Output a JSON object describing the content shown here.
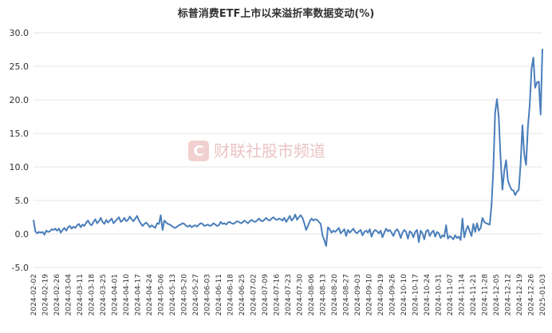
{
  "chart_data": {
    "type": "line",
    "title": "标普消费ETF上市以来溢折率数据变动(%)",
    "xlabel": "",
    "ylabel": "",
    "ylim": [
      -5,
      30
    ],
    "yticks": [
      "-5.0",
      "0.0",
      "5.0",
      "10.0",
      "15.0",
      "20.0",
      "25.0",
      "30.0"
    ],
    "grid": true,
    "legend": "none",
    "x_tick_labels": [
      "2024-02-02",
      "2024-02-19",
      "2024-02-26",
      "2024-03-04",
      "2024-03-11",
      "2024-03-18",
      "2024-03-25",
      "2024-04-01",
      "2024-04-10",
      "2024-04-17",
      "2024-04-24",
      "2024-05-06",
      "2024-05-13",
      "2024-05-20",
      "2024-05-27",
      "2024-06-03",
      "2024-06-11",
      "2024-06-18",
      "2024-06-25",
      "2024-07-02",
      "2024-07-09",
      "2024-07-16",
      "2024-07-23",
      "2024-07-30",
      "2024-08-06",
      "2024-08-13",
      "2024-08-20",
      "2024-08-27",
      "2024-09-03",
      "2024-09-10",
      "2024-09-19",
      "2024-09-26",
      "2024-10-10",
      "2024-10-17",
      "2024-10-24",
      "2024-10-31",
      "2024-11-07",
      "2024-11-14",
      "2024-11-21",
      "2024-11-28",
      "2024-12-05",
      "2024-12-12",
      "2024-12-19",
      "2024-12-26",
      "2025-01-03"
    ],
    "series": [
      {
        "color": "#4a7ebb",
        "values": [
          2.1,
          0.4,
          0.1,
          0.3,
          0.2,
          0.3,
          -0.1,
          0.5,
          0.3,
          0.4,
          0.7,
          0.6,
          0.8,
          0.5,
          0.8,
          0.2,
          0.6,
          0.9,
          0.5,
          1.0,
          1.2,
          0.8,
          1.1,
          0.9,
          1.3,
          1.5,
          1.0,
          1.4,
          1.2,
          1.7,
          2.0,
          1.5,
          1.3,
          1.8,
          2.2,
          1.6,
          1.9,
          2.4,
          1.8,
          1.5,
          2.1,
          1.7,
          2.0,
          2.3,
          1.6,
          1.9,
          2.2,
          2.5,
          1.8,
          2.0,
          2.4,
          1.9,
          2.1,
          2.6,
          2.2,
          1.9,
          2.3,
          2.7,
          2.0,
          1.6,
          1.2,
          1.5,
          1.7,
          1.4,
          1.0,
          1.3,
          1.1,
          0.9,
          1.6,
          1.5,
          2.8,
          0.6,
          2.0,
          1.7,
          1.5,
          1.4,
          1.2,
          1.0,
          0.9,
          1.1,
          1.3,
          1.4,
          1.6,
          1.5,
          1.2,
          1.1,
          1.3,
          1.0,
          1.2,
          1.3,
          1.1,
          1.4,
          1.6,
          1.5,
          1.2,
          1.3,
          1.4,
          1.2,
          1.3,
          1.6,
          1.4,
          1.2,
          1.3,
          1.8,
          1.5,
          1.6,
          1.4,
          1.7,
          1.8,
          1.6,
          1.5,
          1.7,
          1.9,
          1.8,
          1.6,
          1.7,
          2.0,
          1.8,
          1.6,
          1.9,
          2.1,
          1.9,
          1.8,
          2.0,
          2.3,
          2.0,
          1.9,
          2.1,
          2.4,
          2.1,
          2.0,
          2.3,
          2.5,
          2.2,
          2.1,
          2.3,
          2.2,
          2.0,
          2.4,
          1.8,
          2.2,
          2.7,
          2.0,
          2.3,
          2.9,
          2.1,
          2.5,
          2.8,
          2.4,
          1.6,
          0.6,
          1.2,
          1.9,
          2.3,
          2.0,
          2.2,
          2.1,
          1.8,
          1.5,
          -0.2,
          -0.9,
          -1.8,
          1.0,
          0.7,
          0.2,
          0.5,
          0.3,
          0.6,
          0.9,
          0.1,
          0.4,
          0.7,
          -0.3,
          0.6,
          0.2,
          0.5,
          0.8,
          0.3,
          0.1,
          0.4,
          0.6,
          -0.2,
          0.3,
          0.5,
          0.2,
          0.7,
          -0.4,
          0.3,
          0.6,
          0.4,
          0.1,
          0.5,
          -0.5,
          0.2,
          0.8,
          0.4,
          0.6,
          0.2,
          -0.3,
          0.4,
          0.7,
          0.3,
          -0.6,
          0.2,
          0.6,
          0.3,
          -0.7,
          0.4,
          0.2,
          -0.5,
          0.3,
          0.6,
          -1.2,
          0.5,
          0.1,
          -0.8,
          0.4,
          0.6,
          -0.3,
          0.2,
          0.5,
          -0.4,
          0.3,
          0.1,
          -0.6,
          -0.2,
          -0.4,
          1.3,
          -0.7,
          -0.3,
          -0.5,
          -0.8,
          -0.2,
          -0.6,
          -0.4,
          -0.9,
          2.3,
          -0.5,
          0.6,
          1.2,
          0.4,
          -0.3,
          1.5,
          0.3,
          1.6,
          0.5,
          0.9,
          2.4,
          1.8,
          1.6,
          1.5,
          1.4,
          4.3,
          9.8,
          18.2,
          20.1,
          17.3,
          11.2,
          6.6,
          9.4,
          11.0,
          8.0,
          7.2,
          6.6,
          6.5,
          5.8,
          6.3,
          6.6,
          10.5,
          16.2,
          11.9,
          10.3,
          15.9,
          19.2,
          24.6,
          26.3,
          21.8,
          22.6,
          22.7,
          17.8,
          27.6
        ]
      }
    ]
  },
  "watermark": "财联社股市频道"
}
